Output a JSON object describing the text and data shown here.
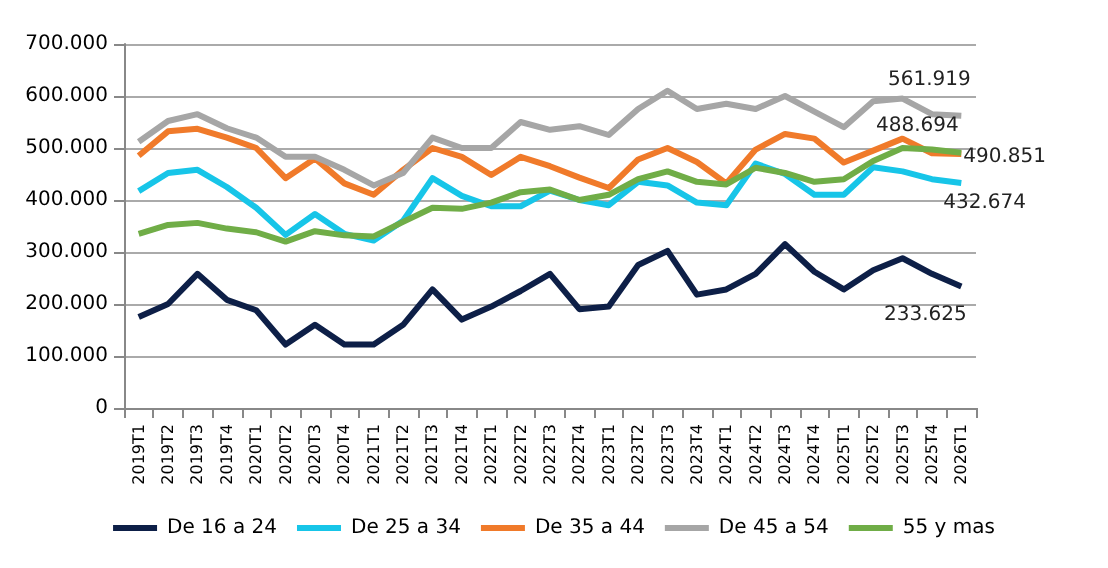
{
  "chart_data": {
    "type": "line",
    "categories": [
      "2019T1",
      "2019T2",
      "2019T3",
      "2019T4",
      "2020T1",
      "2020T2",
      "2020T3",
      "2020T4",
      "2021T1",
      "2021T2",
      "2021T3",
      "2021T4",
      "2022T1",
      "2022T2",
      "2022T3",
      "2022T4",
      "2023T1",
      "2023T2",
      "2023T3",
      "2023T4",
      "2024T1",
      "2024T2",
      "2024T3",
      "2024T4",
      "2025T1",
      "2025T2",
      "2025T3",
      "2025T4",
      "2026T1"
    ],
    "series": [
      {
        "name": "De 16 a 24",
        "color": "#0d1f47",
        "values": [
          175000,
          200000,
          258000,
          208000,
          188000,
          122000,
          160000,
          122000,
          122000,
          160000,
          228000,
          170000,
          195000,
          225000,
          258000,
          190000,
          195000,
          275000,
          302000,
          218000,
          228000,
          258000,
          315000,
          262000,
          228000,
          265000,
          288000,
          258000,
          233625
        ],
        "value_labels": [
          null,
          null,
          null,
          null,
          null,
          null,
          null,
          null,
          null,
          null,
          null,
          null,
          null,
          null,
          null,
          null,
          null,
          null,
          null,
          null,
          null,
          null,
          null,
          null,
          null,
          null,
          null,
          null,
          "233.625"
        ]
      },
      {
        "name": "De 25 a 34",
        "color": "#17c5e8",
        "values": [
          417000,
          452000,
          458000,
          425000,
          385000,
          333000,
          373000,
          335000,
          322000,
          360000,
          442000,
          408000,
          388000,
          388000,
          418000,
          400000,
          390000,
          435000,
          428000,
          395000,
          390000,
          470000,
          450000,
          410000,
          410000,
          463000,
          455000,
          440000,
          432674
        ],
        "value_labels": [
          null,
          null,
          null,
          null,
          null,
          null,
          null,
          null,
          null,
          null,
          null,
          null,
          null,
          null,
          null,
          null,
          null,
          null,
          null,
          null,
          null,
          null,
          null,
          null,
          null,
          null,
          null,
          null,
          "432.674"
        ]
      },
      {
        "name": "De 35 a 44",
        "color": "#f07a2a",
        "values": [
          485000,
          532000,
          537000,
          520000,
          500000,
          442000,
          480000,
          432000,
          410000,
          458000,
          500000,
          483000,
          448000,
          483000,
          465000,
          443000,
          423000,
          478000,
          500000,
          473000,
          432000,
          497000,
          527000,
          518000,
          472000,
          495000,
          518000,
          490000,
          488694
        ],
        "value_labels": [
          null,
          null,
          null,
          null,
          null,
          null,
          null,
          null,
          null,
          null,
          null,
          null,
          null,
          null,
          null,
          null,
          null,
          null,
          null,
          null,
          null,
          null,
          null,
          null,
          null,
          null,
          null,
          null,
          "488.694"
        ]
      },
      {
        "name": "De 45 a 54",
        "color": "#a6a6a6",
        "values": [
          512000,
          552000,
          565000,
          538000,
          520000,
          483000,
          483000,
          458000,
          428000,
          452000,
          520000,
          500000,
          500000,
          550000,
          535000,
          542000,
          525000,
          575000,
          610000,
          575000,
          585000,
          575000,
          600000,
          570000,
          540000,
          590000,
          595000,
          565000,
          561919
        ],
        "value_labels": [
          null,
          null,
          null,
          null,
          null,
          null,
          null,
          null,
          null,
          null,
          null,
          null,
          null,
          null,
          null,
          null,
          null,
          null,
          null,
          null,
          null,
          null,
          null,
          null,
          null,
          null,
          null,
          null,
          "561.919"
        ]
      },
      {
        "name": "55 y mas",
        "color": "#70ad47",
        "values": [
          335000,
          352000,
          356000,
          345000,
          338000,
          320000,
          340000,
          332000,
          330000,
          358000,
          385000,
          383000,
          395000,
          415000,
          420000,
          400000,
          410000,
          440000,
          455000,
          435000,
          430000,
          462000,
          452000,
          435000,
          440000,
          475000,
          500000,
          497000,
          490851
        ],
        "value_labels": [
          null,
          null,
          null,
          null,
          null,
          null,
          null,
          null,
          null,
          null,
          null,
          null,
          null,
          null,
          null,
          null,
          null,
          null,
          null,
          null,
          null,
          null,
          null,
          null,
          null,
          null,
          null,
          null,
          "490.851"
        ]
      }
    ],
    "ylim": [
      0,
      700000
    ],
    "yticks": [
      {
        "value": 0,
        "label": "0"
      },
      {
        "value": 100000,
        "label": "100.000"
      },
      {
        "value": 200000,
        "label": "200.000"
      },
      {
        "value": 300000,
        "label": "300.000"
      },
      {
        "value": 400000,
        "label": "400.000"
      },
      {
        "value": 500000,
        "label": "500.000"
      },
      {
        "value": 600000,
        "label": "600.000"
      },
      {
        "value": 700000,
        "label": "700.000"
      }
    ],
    "grid": "y",
    "legend": "bottom",
    "marker": "none",
    "line_style": "solid"
  }
}
